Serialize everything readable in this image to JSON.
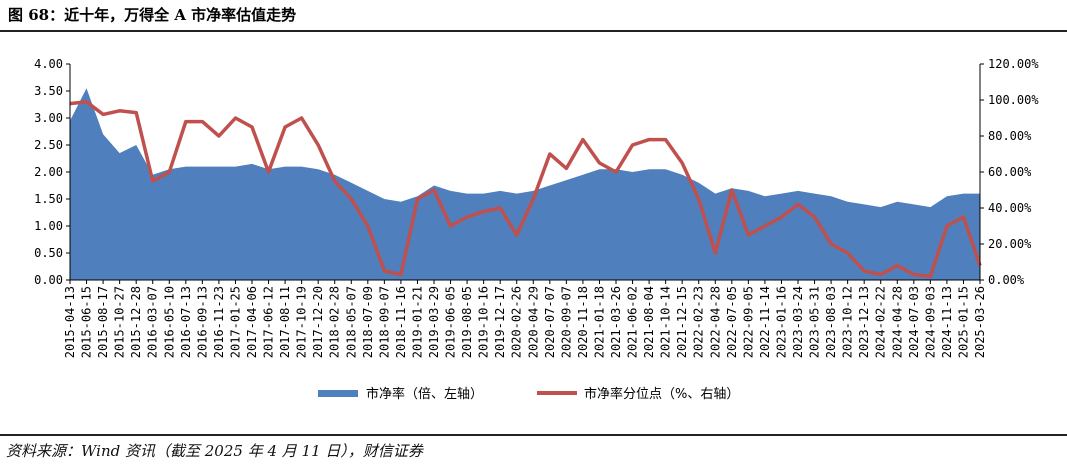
{
  "header": {
    "title": "图 68：近十年，万得全 A 市净率估值走势"
  },
  "footer": {
    "source": "资料来源：Wind 资讯（截至 2025 年 4 月 11 日），财信证券"
  },
  "colors": {
    "pb_area": "#4F7FBC",
    "percentile_line": "#C0504D",
    "rule": "#222222"
  },
  "chart_data": {
    "type": "area",
    "title": "",
    "left_axis": {
      "min": 0,
      "max": 4,
      "ticks": [
        "0.00",
        "0.50",
        "1.00",
        "1.50",
        "2.00",
        "2.50",
        "3.00",
        "3.50",
        "4.00"
      ]
    },
    "right_axis": {
      "min": 0,
      "max": 120,
      "ticks": [
        "0.00%",
        "20.00%",
        "40.00%",
        "60.00%",
        "80.00%",
        "100.00%",
        "120.00%"
      ]
    },
    "x_ticks": [
      "2015-04-13",
      "2015-06-15",
      "2015-08-17",
      "2015-10-27",
      "2015-12-28",
      "2016-03-07",
      "2016-05-10",
      "2016-07-13",
      "2016-09-13",
      "2016-11-23",
      "2017-01-25",
      "2017-04-06",
      "2017-06-12",
      "2017-08-11",
      "2017-10-19",
      "2017-12-20",
      "2018-02-28",
      "2018-05-07",
      "2018-07-09",
      "2018-09-07",
      "2018-11-16",
      "2019-01-21",
      "2019-03-29",
      "2019-06-05",
      "2019-08-05",
      "2019-10-16",
      "2019-12-17",
      "2020-02-26",
      "2020-04-29",
      "2020-07-07",
      "2020-09-07",
      "2020-11-18",
      "2021-01-18",
      "2021-03-26",
      "2021-06-02",
      "2021-08-04",
      "2021-10-14",
      "2021-12-15",
      "2022-02-23",
      "2022-04-28",
      "2022-07-05",
      "2022-09-05",
      "2022-11-14",
      "2023-01-16",
      "2023-03-24",
      "2023-05-31",
      "2023-08-03",
      "2023-10-12",
      "2023-12-13",
      "2024-02-22",
      "2024-04-28",
      "2024-07-03",
      "2024-09-03",
      "2024-11-13",
      "2025-01-15",
      "2025-03-26"
    ],
    "series": [
      {
        "name": "市净率（倍、左轴）",
        "axis": "left",
        "style": "area",
        "values": [
          2.95,
          3.55,
          2.7,
          2.35,
          2.5,
          1.95,
          2.05,
          2.1,
          2.1,
          2.1,
          2.1,
          2.15,
          2.05,
          2.1,
          2.1,
          2.05,
          1.95,
          1.8,
          1.65,
          1.5,
          1.45,
          1.55,
          1.75,
          1.65,
          1.6,
          1.6,
          1.65,
          1.6,
          1.65,
          1.75,
          1.85,
          1.95,
          2.05,
          2.05,
          2.0,
          2.05,
          2.05,
          1.95,
          1.8,
          1.6,
          1.7,
          1.65,
          1.55,
          1.6,
          1.65,
          1.6,
          1.55,
          1.45,
          1.4,
          1.35,
          1.45,
          1.4,
          1.35,
          1.55,
          1.6,
          1.6
        ]
      },
      {
        "name": "市净率分位点（%、右轴）",
        "axis": "right",
        "style": "line",
        "values": [
          98,
          99,
          92,
          94,
          93,
          55,
          60,
          88,
          88,
          80,
          90,
          85,
          60,
          85,
          90,
          75,
          55,
          45,
          30,
          5,
          3,
          45,
          50,
          30,
          35,
          38,
          40,
          25,
          45,
          70,
          62,
          78,
          65,
          60,
          75,
          78,
          78,
          65,
          45,
          15,
          50,
          25,
          30,
          35,
          42,
          35,
          20,
          15,
          5,
          3,
          8,
          3,
          2,
          30,
          35,
          8
        ]
      }
    ],
    "legend_position": "bottom-center",
    "grid": false
  }
}
